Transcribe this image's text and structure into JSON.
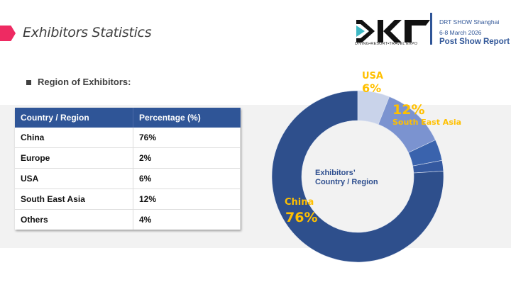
{
  "header": {
    "title": "Exhibitors Statistics",
    "logo_text": "DRT",
    "logo_tagline": "DIVING•RESORT•TRAVEL EXPO",
    "event_name": "DRT SHOW Shanghai",
    "event_dates": "6-8 March 2026",
    "report_title": "Post Show Report"
  },
  "section_title": "Region of Exhibitors:",
  "table": {
    "columns": [
      "Country / Region",
      "Percentage (%)"
    ],
    "rows": [
      [
        "China",
        "76%"
      ],
      [
        "Europe",
        "2%"
      ],
      [
        "USA",
        "6%"
      ],
      [
        "South East Asia",
        "12%"
      ],
      [
        "Others",
        "4%"
      ]
    ]
  },
  "chart_data": {
    "type": "pie",
    "donut": true,
    "center_label": [
      "Exhibitors’",
      "Country / Region"
    ],
    "categories": [
      "USA",
      "South East Asia",
      "Others",
      "Europe",
      "China"
    ],
    "values": [
      6,
      12,
      4,
      2,
      76
    ],
    "colors": [
      "#c9d3ea",
      "#7b93d0",
      "#3a63ad",
      "#3459a0",
      "#2e4f8c"
    ],
    "data_labels": [
      {
        "category": "USA",
        "value": "6%"
      },
      {
        "category": "South East Asia",
        "value": "12%"
      },
      {
        "category": "China",
        "value": "76%"
      }
    ],
    "label_color": "#ffc000"
  }
}
